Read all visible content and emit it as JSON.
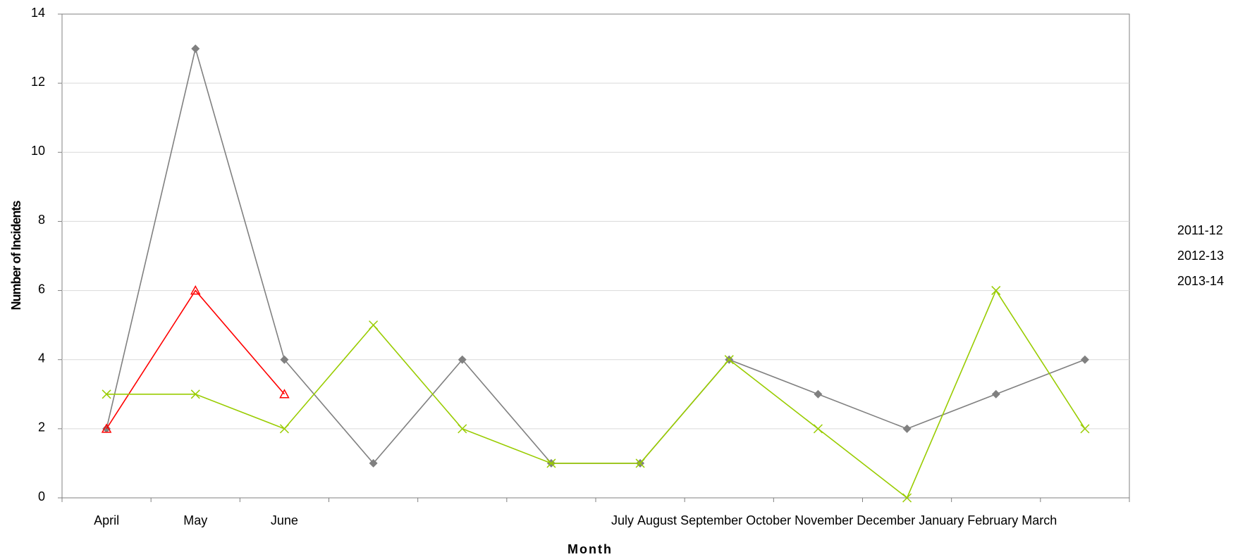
{
  "chart_data": {
    "type": "line",
    "x_label": "Month",
    "y_label": "Number of Incidents",
    "categories": [
      "April",
      "May",
      "June",
      "July",
      "August",
      "September",
      "October",
      "November",
      "December",
      "January",
      "February",
      "March"
    ],
    "series": [
      {
        "name": "2011-12",
        "color": "#808080",
        "marker": "diamond",
        "values": [
          2,
          13,
          4,
          1,
          4,
          1,
          1,
          4,
          3,
          2,
          3,
          4
        ]
      },
      {
        "name": "2012-13",
        "color": "#ff0000",
        "marker": "triangle",
        "values": [
          2,
          6,
          3,
          null,
          null,
          null,
          null,
          null,
          null,
          null,
          null,
          null
        ]
      },
      {
        "name": "2013-14",
        "color": "#99cc00",
        "marker": "x",
        "values": [
          3,
          3,
          2,
          5,
          2,
          1,
          1,
          4,
          2,
          0,
          6,
          2
        ]
      }
    ],
    "ylim": [
      0,
      14
    ],
    "yticks": [
      0,
      2,
      4,
      6,
      8,
      10,
      12,
      14
    ],
    "grid": true
  }
}
